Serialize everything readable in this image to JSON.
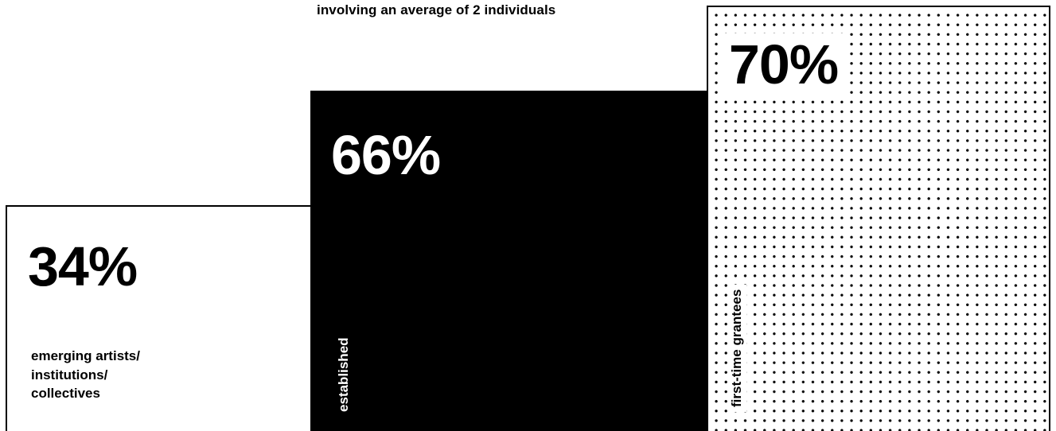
{
  "caption": "involving an average of 2 individuals",
  "chart_data": {
    "type": "bar",
    "categories": [
      "emerging artists/ institutions/ collectives",
      "established",
      "first-time grantees"
    ],
    "values": [
      34,
      66,
      70
    ],
    "value_labels": [
      "34%",
      "66%",
      "70%"
    ],
    "label_lines": [
      "emerging artists/",
      "institutions/",
      "collectives"
    ],
    "unit": "%",
    "colors": [
      "#ffffff",
      "#000000",
      "dotted"
    ]
  }
}
